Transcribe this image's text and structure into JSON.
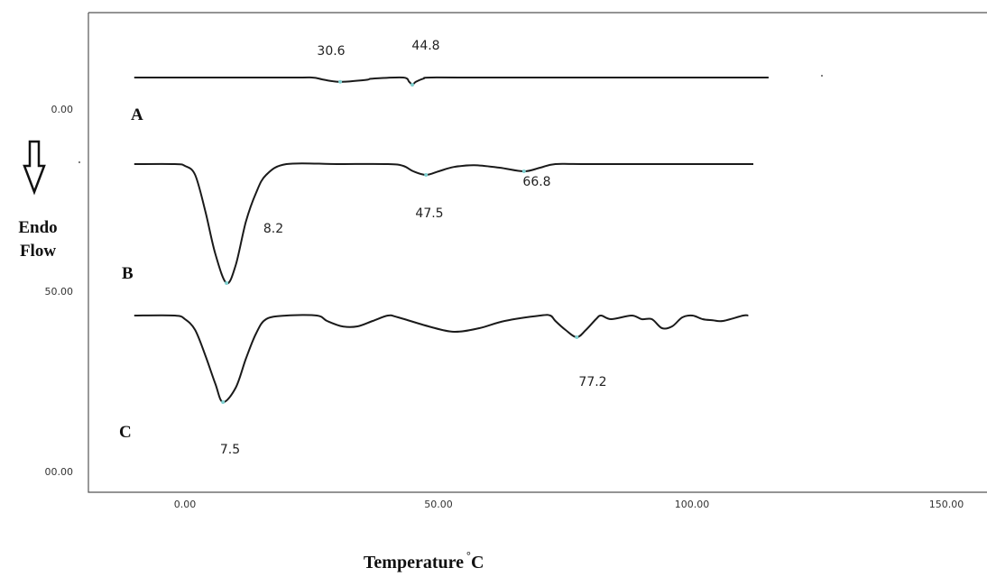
{
  "chart_data": {
    "type": "line",
    "ylabel_line1": "Endo",
    "ylabel_line2": "Flow",
    "xlabel": "Temperature",
    "xlabel_unit": "C",
    "x_ticks": [
      "0.00",
      "50.00",
      "100.00",
      "150.00"
    ],
    "y_ticks": [
      "0.00",
      "50.00",
      "00.00"
    ],
    "grid": false,
    "series": [
      {
        "name": "A",
        "offset": 0,
        "x": [
          -10,
          20,
          25,
          27,
          29,
          30.6,
          33,
          36,
          37,
          43,
          44.2,
          44.8,
          45.5,
          47,
          48.5,
          60,
          115
        ],
        "y": [
          0,
          0,
          0,
          0.5,
          1,
          1.2,
          1,
          0.6,
          0.3,
          0,
          1.2,
          2,
          1.2,
          0.3,
          0,
          0,
          0
        ],
        "peaks": [
          {
            "x": 30.6,
            "label": "30.6"
          },
          {
            "x": 44.8,
            "label": "44.8"
          }
        ]
      },
      {
        "name": "B",
        "offset": 24,
        "x": [
          -10,
          -2,
          0,
          2,
          4,
          6,
          8.2,
          10,
          12,
          14,
          16,
          20,
          30,
          40,
          43,
          45,
          47.5,
          50,
          53,
          57,
          62,
          66.8,
          70,
          73,
          80,
          112
        ],
        "y": [
          0,
          0,
          0.5,
          3,
          13,
          25,
          33,
          28,
          16,
          8,
          3,
          0,
          0,
          0,
          0.5,
          2,
          3,
          2,
          0.8,
          0.3,
          1,
          2,
          1,
          0,
          0,
          0
        ],
        "peaks": [
          {
            "x": 8.2,
            "label": "8.2"
          },
          {
            "x": 47.5,
            "label": "47.5"
          },
          {
            "x": 66.8,
            "label": "66.8"
          }
        ]
      },
      {
        "name": "C",
        "offset": 66,
        "x": [
          -10,
          -2,
          0,
          2,
          4,
          6,
          7.5,
          10,
          12,
          14,
          16,
          20,
          26,
          28,
          31,
          34,
          37,
          40,
          42,
          48,
          53,
          58,
          63,
          70,
          72,
          73,
          75,
          77.2,
          79,
          81,
          82,
          84,
          88,
          90,
          92,
          94,
          96,
          98,
          100,
          102,
          104,
          106,
          110,
          111
        ],
        "y": [
          0,
          0,
          1,
          4,
          11,
          19,
          24,
          20,
          12,
          5,
          1,
          0,
          0,
          1.5,
          3,
          3,
          1.5,
          0,
          0.5,
          3,
          4.5,
          3.5,
          1.5,
          0,
          0,
          1.5,
          4,
          6,
          4,
          1,
          0,
          1,
          0,
          1,
          1,
          3.5,
          3,
          0.5,
          0,
          1,
          1.3,
          1.5,
          0,
          0
        ],
        "peaks": [
          {
            "x": 7.5,
            "label": "7.5"
          },
          {
            "x": 77.2,
            "label": "77.2"
          }
        ]
      }
    ]
  }
}
